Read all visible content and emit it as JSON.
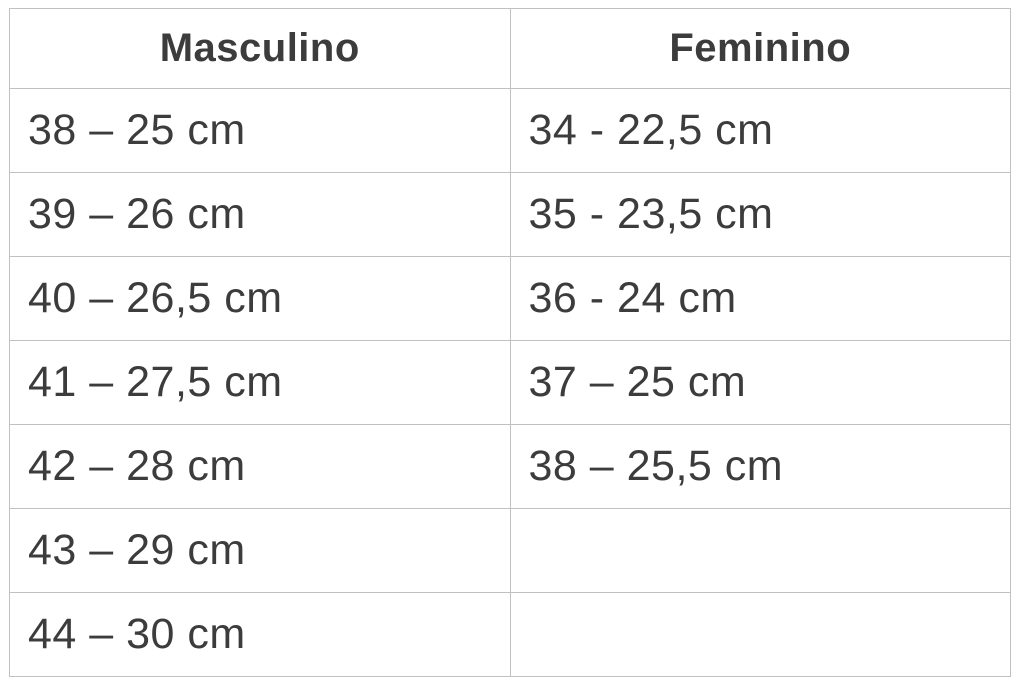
{
  "colors": {
    "text": "#3c3c3c",
    "border": "#c0c0c0",
    "background": "#ffffff"
  },
  "chart_data": {
    "type": "table",
    "title": "",
    "columns": [
      "Masculino",
      "Feminino"
    ],
    "rows": [
      [
        "38 – 25 cm",
        "34 - 22,5 cm"
      ],
      [
        "39 – 26 cm",
        "35 - 23,5 cm"
      ],
      [
        "40 – 26,5 cm",
        "36 - 24 cm"
      ],
      [
        "41 – 27,5 cm",
        "37 – 25 cm"
      ],
      [
        "42 – 28 cm",
        "38 – 25,5 cm"
      ],
      [
        "43 – 29 cm",
        ""
      ],
      [
        "44 – 30 cm",
        ""
      ]
    ]
  }
}
